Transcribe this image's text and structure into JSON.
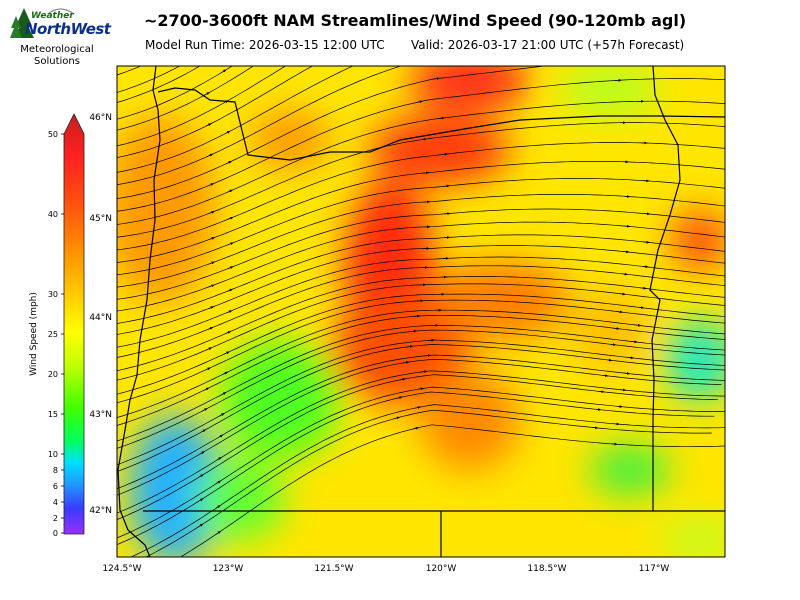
{
  "header": {
    "title": "~2700-3600ft NAM Streamlines/Wind Speed (90-120mb agl)",
    "model_run": "Model Run Time: 2026-03-15 12:00 UTC",
    "valid": "Valid: 2026-03-17 21:00 UTC  (+57h Forecast)"
  },
  "logo": {
    "weather": "Weather",
    "northwest": "NorthWest",
    "line1": "Meteorological",
    "line2": "Solutions"
  },
  "colorbar": {
    "label": "Wind Speed (mph)",
    "ticks": [
      "0",
      "2",
      "4",
      "6",
      "8",
      "10",
      "15",
      "20",
      "25",
      "30",
      "40",
      "50"
    ],
    "tick_values": [
      0,
      2,
      4,
      6,
      8,
      10,
      15,
      20,
      25,
      30,
      40,
      50
    ]
  },
  "map": {
    "lat_labels": [
      "46°N",
      "45°N",
      "44°N",
      "43°N",
      "42°N"
    ],
    "lat_values": [
      46,
      45,
      44,
      43,
      42
    ],
    "lon_labels": [
      "124.5°W",
      "123°W",
      "121.5°W",
      "120°W",
      "118.5°W",
      "117°W"
    ],
    "lon_values": [
      -124.5,
      -123,
      -121.5,
      -120,
      -118.5,
      -117
    ],
    "extent": {
      "lon_min": -124.6,
      "lon_max": -116.0,
      "lat_min": 41.5,
      "lat_max": 46.5
    }
  },
  "colors": {
    "wind_scale": [
      "#9b30ff",
      "#3a3aff",
      "#1e9bff",
      "#00e0ff",
      "#00ff80",
      "#3cff00",
      "#b4ff00",
      "#ffff00",
      "#ffd200",
      "#ff9a00",
      "#ff5a00",
      "#ff2a1a",
      "#d02020"
    ]
  }
}
